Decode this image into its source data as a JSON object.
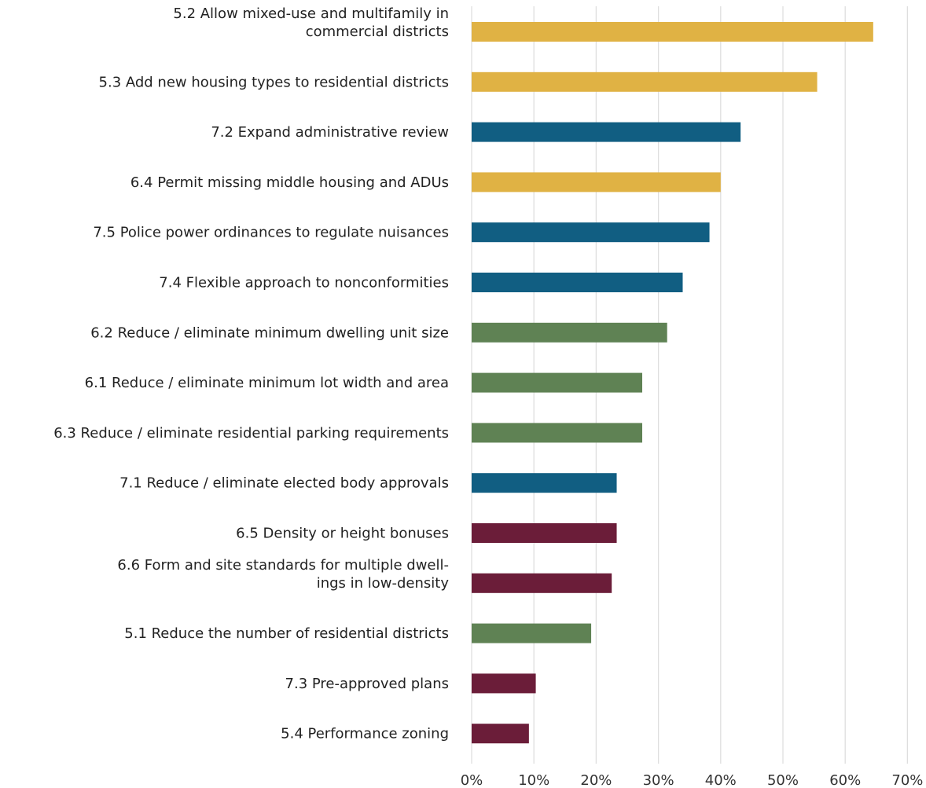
{
  "chart_data": {
    "type": "bar",
    "orientation": "horizontal",
    "title": "",
    "xlabel": "",
    "ylabel": "",
    "xlim": [
      0,
      70
    ],
    "x_ticks": [
      "0%",
      "10%",
      "20%",
      "30%",
      "40%",
      "50%",
      "60%",
      "70%"
    ],
    "grid": "vertical",
    "legend": "none",
    "categories": [
      "5.2 Allow mixed-use and multifamily in commercial districts",
      "5.3 Add new housing types to residential districts",
      "7.2 Expand administrative review",
      "6.4 Permit missing middle housing and ADUs",
      "7.5 Police power ordinances to regulate nuisances",
      "7.4 Flexible approach to nonconformities",
      "6.2 Reduce / eliminate minimum dwelling unit size",
      "6.1 Reduce / eliminate minimum lot width and area",
      "6.3 Reduce / eliminate residential parking requirements",
      "7.1 Reduce / eliminate elected body approvals",
      "6.5 Density or height bonuses",
      "6.6 Form and site standards for multiple dwellings in low-density",
      "5.1 Reduce the number of residential districts",
      "7.3 Pre-approved plans",
      "5.4 Performance zoning"
    ],
    "label_lines": [
      [
        "5.2 Allow mixed-use and multifamily in",
        "commercial districts"
      ],
      [
        "5.3 Add new housing types to residential districts"
      ],
      [
        "7.2 Expand administrative review"
      ],
      [
        "6.4 Permit missing middle housing and ADUs"
      ],
      [
        "7.5 Police power ordinances to regulate nuisances"
      ],
      [
        "7.4 Flexible approach to nonconformities"
      ],
      [
        "6.2 Reduce / eliminate minimum dwelling unit size"
      ],
      [
        "6.1 Reduce / eliminate minimum lot width and area"
      ],
      [
        "6.3 Reduce / eliminate residential parking requirements"
      ],
      [
        "7.1 Reduce / eliminate elected body approvals"
      ],
      [
        "6.5 Density or height bonuses"
      ],
      [
        "6.6 Form and site standards for multiple dwell-",
        "ings in low-density"
      ],
      [
        "5.1 Reduce the number of residential districts"
      ],
      [
        "7.3 Pre-approved plans"
      ],
      [
        "5.4 Performance zoning"
      ]
    ],
    "values": [
      64.5,
      55.5,
      43.2,
      40.0,
      38.2,
      33.9,
      31.4,
      27.4,
      27.4,
      23.3,
      23.3,
      22.5,
      19.2,
      10.3,
      9.2
    ],
    "colors": [
      "#e0b244",
      "#e0b244",
      "#115e82",
      "#e0b244",
      "#115e82",
      "#115e82",
      "#5f8254",
      "#5f8254",
      "#5f8254",
      "#115e82",
      "#6b1d39",
      "#6b1d39",
      "#5f8254",
      "#6b1d39",
      "#6b1d39"
    ]
  }
}
